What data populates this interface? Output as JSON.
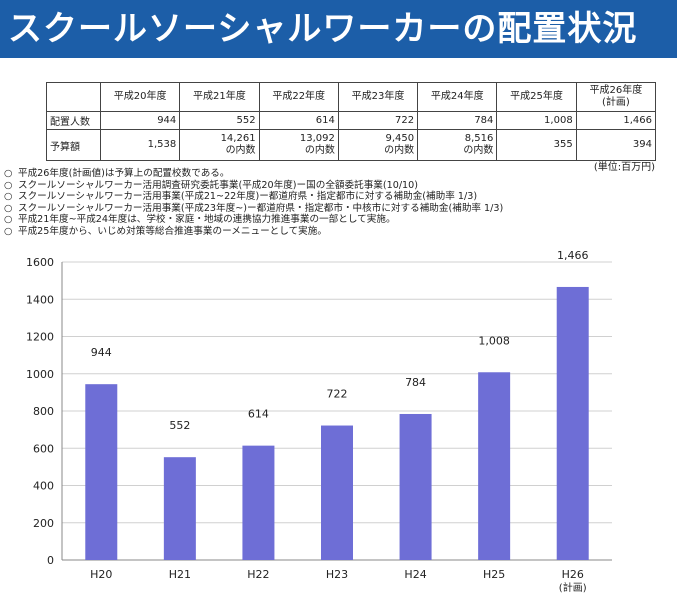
{
  "header": {
    "title": "スクールソーシャルワーカーの配置状況"
  },
  "table": {
    "columns": [
      "平成20年度",
      "平成21年度",
      "平成22年度",
      "平成23年度",
      "平成24年度",
      "平成25年度"
    ],
    "last_column_line1": "平成26年度",
    "last_column_line2": "(計画)",
    "rows": [
      {
        "label": "配置人数",
        "cells": [
          {
            "value": "944"
          },
          {
            "value": "552"
          },
          {
            "value": "614"
          },
          {
            "value": "722"
          },
          {
            "value": "784"
          },
          {
            "value": "1,008"
          },
          {
            "value": "1,466"
          }
        ]
      },
      {
        "label": "予算額",
        "cells": [
          {
            "value": "1,538",
            "suffix": ""
          },
          {
            "value": "14,261",
            "suffix": "の内数"
          },
          {
            "value": "13,092",
            "suffix": "の内数"
          },
          {
            "value": "9,450",
            "suffix": "の内数"
          },
          {
            "value": "8,516",
            "suffix": "の内数"
          },
          {
            "value": "355",
            "suffix": ""
          },
          {
            "value": "394",
            "suffix": ""
          }
        ]
      }
    ],
    "unit": "(単位:百万円)"
  },
  "notes": {
    "bullet": "○",
    "items": [
      "平成26年度(計画値)は予算上の配置校数である。",
      "スクールソーシャルワーカー活用調査研究委託事業(平成20年度)ー国の全額委託事業(10/10)",
      "スクールソーシャルワーカー活用事業(平成21~22年度)ー都道府県・指定都市に対する補助金(補助率 1/3)",
      "スクールソーシャルワーカー活用事業(平成23年度~)ー都道府県・指定都市・中核市に対する補助金(補助率 1/3)",
      "平成21年度~平成24年度は、学校・家庭・地域の連携協力推進事業の一部として実施。",
      "平成25年度から、いじめ対策等総合推進事業のーメニューとして実施。"
    ]
  },
  "chart_data": {
    "type": "bar",
    "categories": [
      "H20",
      "H21",
      "H22",
      "H23",
      "H24",
      "H25",
      "H26"
    ],
    "category_sublabels": [
      "",
      "",
      "",
      "",
      "",
      "",
      "(計画)"
    ],
    "values": [
      944,
      552,
      614,
      722,
      784,
      1008,
      1466
    ],
    "value_labels": [
      "944",
      "552",
      "614",
      "722",
      "784",
      "1,008",
      "1,466"
    ],
    "ylim": [
      0,
      1600
    ],
    "yticks": [
      0,
      200,
      400,
      600,
      800,
      1000,
      1200,
      1400,
      1600
    ],
    "grid": true,
    "bar_color": "#6e6ed6",
    "grid_color": "#d0d0d0",
    "title": "",
    "xlabel": "",
    "ylabel": ""
  }
}
